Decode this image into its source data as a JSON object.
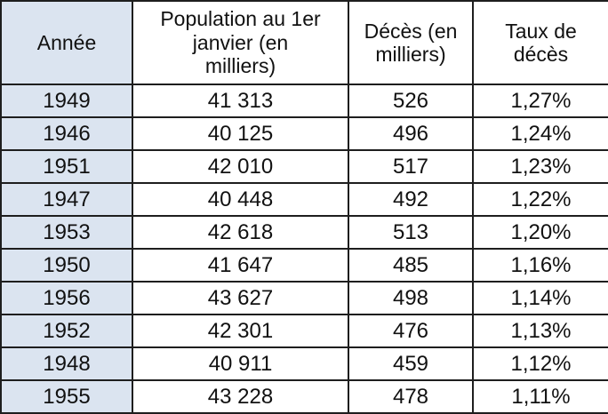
{
  "table": {
    "headers": [
      "Année",
      "Population au 1er\njanvier (en\nmilliers)",
      "Décès (en\nmilliers)",
      "Taux de\ndécès"
    ],
    "rows": [
      [
        "1949",
        "41 313",
        "526",
        "1,27%"
      ],
      [
        "1946",
        "40 125",
        "496",
        "1,24%"
      ],
      [
        "1951",
        "42 010",
        "517",
        "1,23%"
      ],
      [
        "1947",
        "40 448",
        "492",
        "1,22%"
      ],
      [
        "1953",
        "42 618",
        "513",
        "1,20%"
      ],
      [
        "1950",
        "41 647",
        "485",
        "1,16%"
      ],
      [
        "1956",
        "43 627",
        "498",
        "1,14%"
      ],
      [
        "1952",
        "42 301",
        "476",
        "1,13%"
      ],
      [
        "1948",
        "40 911",
        "459",
        "1,12%"
      ],
      [
        "1955",
        "43 228",
        "478",
        "1,11%"
      ]
    ]
  },
  "colors": {
    "year_column_fill": "#dbe4f0",
    "border": "#1e1e1e",
    "text": "#111111"
  }
}
